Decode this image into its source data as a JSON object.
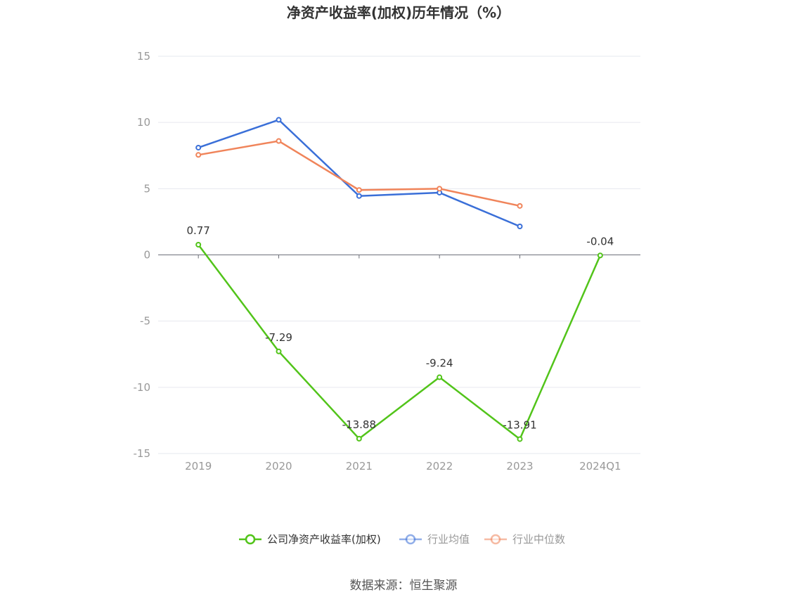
{
  "chart_data": {
    "type": "line",
    "title": "净资产收益率(加权)历年情况（%）",
    "categories": [
      "2019",
      "2020",
      "2021",
      "2022",
      "2023",
      "2024Q1"
    ],
    "ylim": [
      -15,
      15
    ],
    "yticks": [
      15,
      10,
      5,
      0,
      -5,
      -10,
      -15
    ],
    "grid": true,
    "legend_position": "bottom",
    "series": [
      {
        "name": "公司净资产收益率(加权)",
        "color": "#52c41a",
        "show_labels": true,
        "values": [
          0.77,
          -7.29,
          -13.88,
          -9.24,
          -13.91,
          -0.04
        ]
      },
      {
        "name": "行业均值",
        "color": "#3a6fd8",
        "show_labels": false,
        "values": [
          8.1,
          10.2,
          4.45,
          4.7,
          2.15,
          null
        ]
      },
      {
        "name": "行业中位数",
        "color": "#f0845a",
        "show_labels": false,
        "values": [
          7.55,
          8.6,
          4.9,
          5.0,
          3.7,
          null
        ]
      }
    ],
    "labels": [
      "0.77",
      "-7.29",
      "-13.88",
      "-9.24",
      "-13.91",
      "-0.04"
    ]
  },
  "source": "数据来源：恒生聚源"
}
